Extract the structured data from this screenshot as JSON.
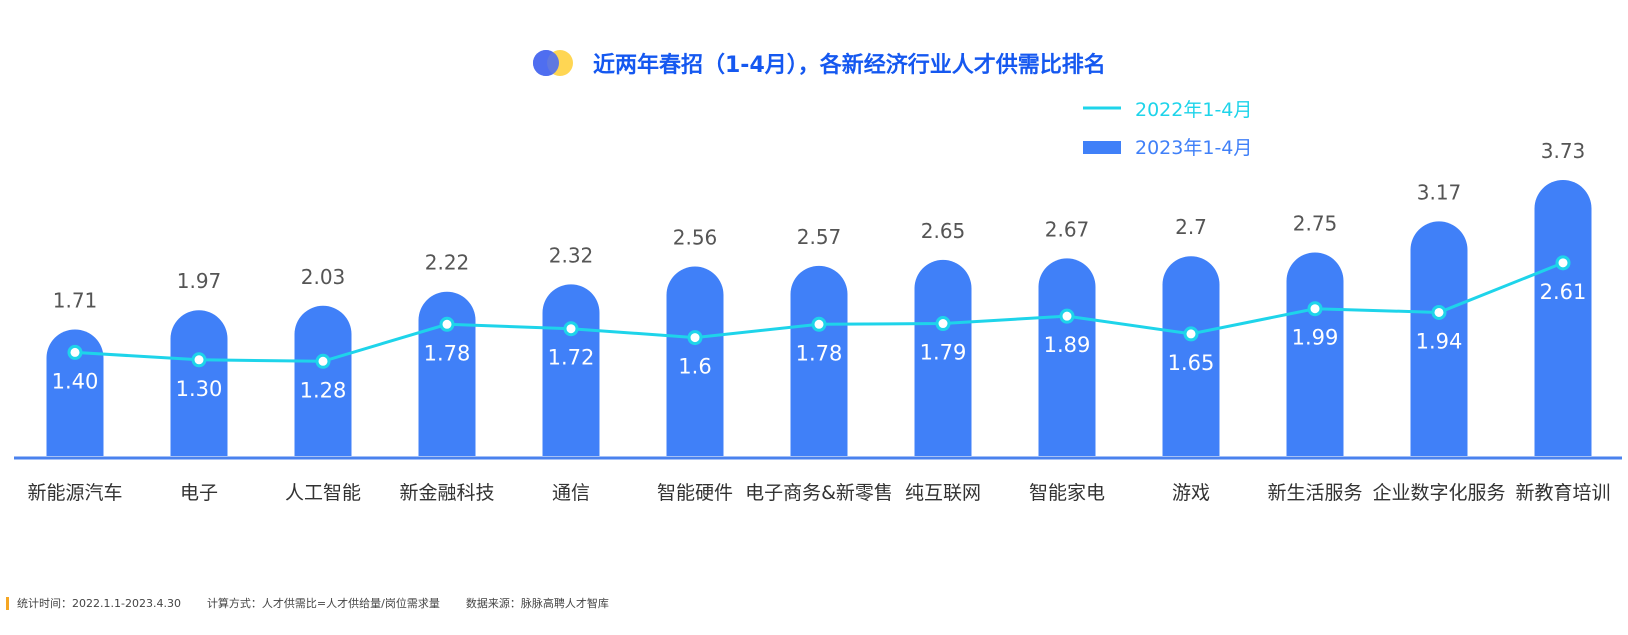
{
  "colors": {
    "bar": "#4080f8",
    "line": "#1ed4ea",
    "title": "#1558f0",
    "axis": "#4a82ee",
    "label": "#555555",
    "footer_accent": "#f5a623",
    "logo_left": "#4f6ef0",
    "logo_right": "#ffd44a"
  },
  "chart_data": {
    "type": "bar",
    "title": "近两年春招（1-4月），各新经济行业人才供需比排名",
    "legend_position": "top-right",
    "grid": false,
    "categories": [
      "新能源汽车",
      "电子",
      "人工智能",
      "新金融科技",
      "通信",
      "智能硬件",
      "电子商务&新零售",
      "纯互联网",
      "智能家电",
      "游戏",
      "新生活服务",
      "企业数字化服务",
      "新教育培训"
    ],
    "series": [
      {
        "name": "2022年1-4月",
        "type": "line",
        "values": [
          1.4,
          1.3,
          1.28,
          1.78,
          1.72,
          1.6,
          1.78,
          1.79,
          1.89,
          1.65,
          1.99,
          1.94,
          2.61
        ],
        "labels": [
          "1.40",
          "1.30",
          "1.28",
          "1.78",
          "1.72",
          "1.6",
          "1.78",
          "1.79",
          "1.89",
          "1.65",
          "1.99",
          "1.94",
          "2.61"
        ]
      },
      {
        "name": "2023年1-4月",
        "type": "bar",
        "values": [
          1.71,
          1.97,
          2.03,
          2.22,
          2.32,
          2.56,
          2.57,
          2.65,
          2.67,
          2.7,
          2.75,
          3.17,
          3.73
        ],
        "labels": [
          "1.71",
          "1.97",
          "2.03",
          "2.22",
          "2.32",
          "2.56",
          "2.57",
          "2.65",
          "2.67",
          "2.7",
          "2.75",
          "3.17",
          "3.73"
        ]
      }
    ]
  },
  "footer": {
    "stat_time": "统计时间：2022.1.1-2023.4.30",
    "method": "计算方式：人才供需比=人才供给量/岗位需求量",
    "source": "数据来源：脉脉高聘人才智库"
  }
}
